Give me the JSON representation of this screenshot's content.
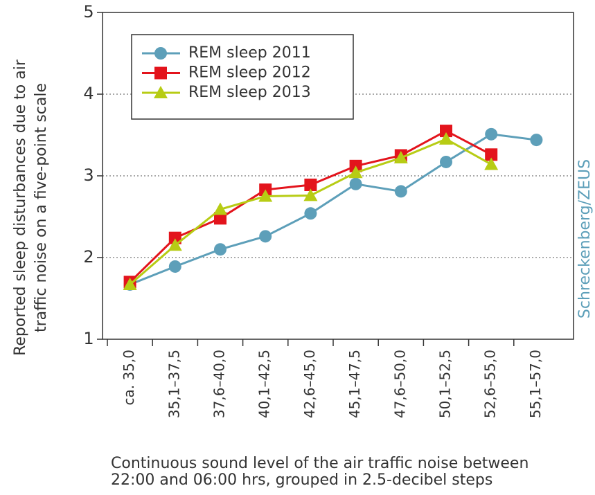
{
  "chart_data": {
    "type": "line",
    "y_label": [
      "Reported sleep disturbances due to air",
      "traffic noise on a five-point scale"
    ],
    "x_label": [
      "Continuous sound level of the air traffic noise between",
      "22:00 and 06:00 hrs, grouped in 2.5-decibel steps"
    ],
    "source": "Schreckenberg/ZEUS",
    "categories": [
      "ca. 35,0",
      "35,1–37,5",
      "37,6–40,0",
      "40,1–42,5",
      "42,6–45,0",
      "45,1–47,5",
      "47,6–50,0",
      "50,1–52,5",
      "52,6–55,0",
      "55,1–57,0"
    ],
    "series": [
      {
        "name": "REM sleep 2011",
        "color": "#5d9fb9",
        "marker": "circle",
        "values": [
          1.67,
          1.89,
          2.1,
          2.26,
          2.54,
          2.9,
          2.81,
          3.17,
          3.51,
          3.44
        ]
      },
      {
        "name": "REM sleep 2012",
        "color": "#e3141c",
        "marker": "square",
        "values": [
          1.7,
          2.24,
          2.48,
          2.83,
          2.89,
          3.12,
          3.25,
          3.55,
          3.26,
          null
        ]
      },
      {
        "name": "REM sleep 2013",
        "color": "#b7cc14",
        "marker": "triangle",
        "values": [
          1.67,
          2.15,
          2.59,
          2.75,
          2.76,
          3.04,
          3.22,
          3.45,
          3.14,
          null
        ]
      }
    ],
    "ylim": [
      1,
      5
    ],
    "yticks": [
      1,
      2,
      3,
      4,
      5
    ],
    "grid": true
  }
}
